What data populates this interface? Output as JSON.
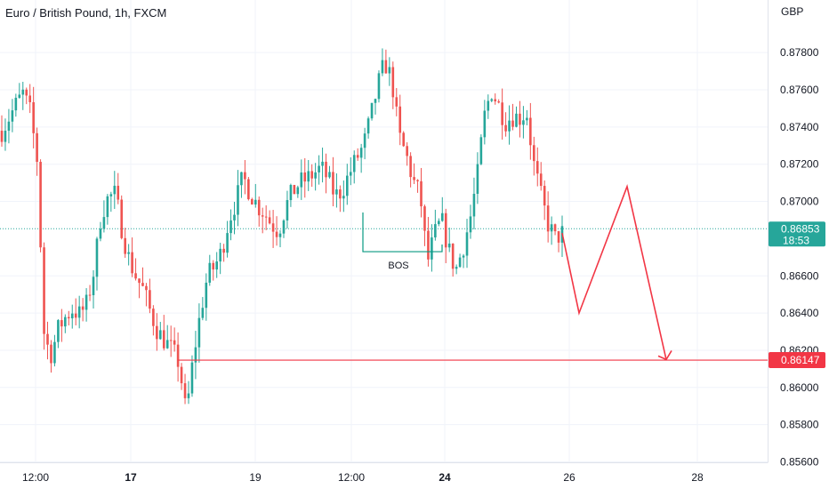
{
  "header": {
    "symbol_title": "Euro / British Pound, 1h, FXCM",
    "currency": "GBP"
  },
  "colors": {
    "up": "#26a69a",
    "down": "#ef5350",
    "drawing": "#f23645",
    "bos_line": "#089981",
    "price_badge": "#26a69a",
    "target_badge": "#f23645",
    "axis_text": "#131722"
  },
  "chart_data": {
    "type": "candlestick",
    "title": "Euro / British Pound, 1h, FXCM",
    "ylabel": "GBP",
    "ylim": [
      0.8555,
      0.8811
    ],
    "y_ticks": [
      "0.87800",
      "0.87600",
      "0.87400",
      "0.87200",
      "0.87000",
      "0.86600",
      "0.86400",
      "0.86200",
      "0.86000",
      "0.85800",
      "0.85600"
    ],
    "x_ticks": [
      "12:00",
      "17",
      "19",
      "12:00",
      "24",
      "26",
      "28"
    ],
    "x_ticks_bold": [
      "17",
      "24"
    ],
    "price_path": [
      0.8738,
      0.8745,
      0.8752,
      0.8758,
      0.8748,
      0.8722,
      0.8626,
      0.8618,
      0.8632,
      0.8638,
      0.8642,
      0.8639,
      0.8645,
      0.8663,
      0.8693,
      0.8702,
      0.8704,
      0.8684,
      0.8668,
      0.8659,
      0.8652,
      0.864,
      0.863,
      0.8625,
      0.862,
      0.8613,
      0.8585,
      0.8616,
      0.864,
      0.866,
      0.8665,
      0.8673,
      0.869,
      0.87,
      0.8713,
      0.8705,
      0.8698,
      0.8694,
      0.8688,
      0.8684,
      0.8697,
      0.8705,
      0.871,
      0.8712,
      0.8715,
      0.8718,
      0.8712,
      0.8703,
      0.8706,
      0.8715,
      0.8723,
      0.873,
      0.8745,
      0.8762,
      0.8775,
      0.8765,
      0.8735,
      0.8725,
      0.8711,
      0.8703,
      0.8667,
      0.8682,
      0.869,
      0.8674,
      0.8663,
      0.8675,
      0.869,
      0.8712,
      0.8745,
      0.876,
      0.8752,
      0.8743,
      0.8746,
      0.8745,
      0.8748,
      0.872,
      0.8703,
      0.8688,
      0.868,
      0.8683
    ],
    "last_price": "0.86853",
    "countdown": "18:53",
    "projection_path": [
      {
        "label": "current",
        "price": 0.8683
      },
      {
        "label": "low",
        "price": 0.864
      },
      {
        "label": "high",
        "price": 0.8708
      },
      {
        "label": "target",
        "price": 0.8615
      }
    ],
    "target_price": "0.86147",
    "target_level": 0.86147,
    "bos": {
      "label": "BOS",
      "price": 0.8673
    }
  }
}
